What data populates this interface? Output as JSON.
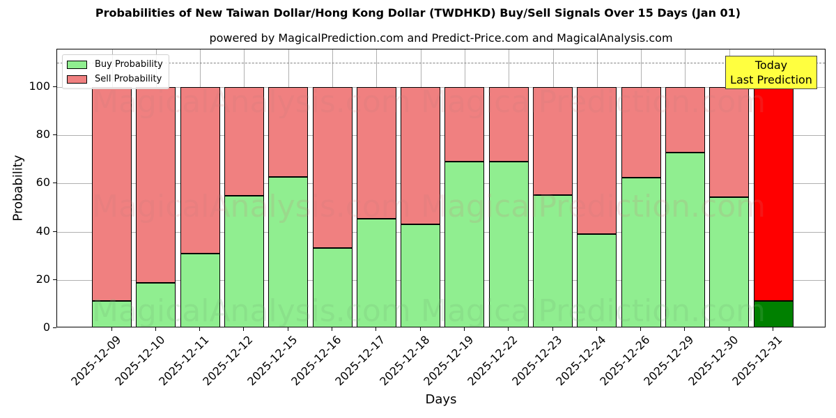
{
  "chart_data": {
    "type": "bar",
    "stacked": true,
    "title": "Probabilities of New Taiwan Dollar/Hong Kong Dollar (TWDHKD) Buy/Sell Signals Over 15 Days (Jan 01)",
    "subtitle": "powered by MagicalPrediction.com and Predict-Price.com and MagicalAnalysis.com",
    "xlabel": "Days",
    "ylabel": "Probability",
    "ylim": [
      0,
      115
    ],
    "yticks": [
      "0",
      "20",
      "40",
      "60",
      "80",
      "100"
    ],
    "grid": true,
    "legend_position": "upper left",
    "categories": [
      "2025-12-09",
      "2025-12-10",
      "2025-12-11",
      "2025-12-12",
      "2025-12-15",
      "2025-12-16",
      "2025-12-17",
      "2025-12-18",
      "2025-12-19",
      "2025-12-22",
      "2025-12-23",
      "2025-12-24",
      "2025-12-26",
      "2025-12-29",
      "2025-12-30",
      "2025-12-31"
    ],
    "series": [
      {
        "name": "Buy Probability",
        "color": "#90ee90",
        "values": [
          11.3,
          18.8,
          31.0,
          55.0,
          62.6,
          33.1,
          45.5,
          43.0,
          69.0,
          69.0,
          55.2,
          39.1,
          62.4,
          72.7,
          54.3,
          11.4
        ]
      },
      {
        "name": "Sell Probability",
        "color": "#f08080",
        "values": [
          88.7,
          81.2,
          69.0,
          45.0,
          37.4,
          66.9,
          54.5,
          57.0,
          31.0,
          31.0,
          44.8,
          60.9,
          37.6,
          27.3,
          45.7,
          88.6
        ]
      }
    ],
    "highlight": {
      "index": 15,
      "buy_color": "#008000",
      "sell_color": "#ff0000"
    },
    "reference_line": {
      "y": 110,
      "style": "dashed",
      "color": "#808080"
    },
    "annotation": {
      "line1": "Today",
      "line2": "Last Prediction",
      "background": "#ffff40"
    },
    "watermarks": [
      "MagicalAnalysis.com",
      "MagicalPrediction.com"
    ]
  }
}
